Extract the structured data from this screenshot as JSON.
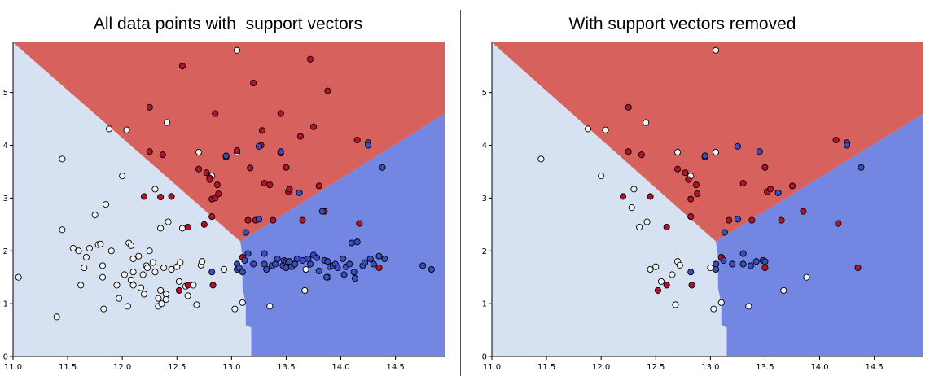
{
  "chart_data": [
    {
      "type": "scatter",
      "title": "All data points with  support vectors",
      "xlabel": "",
      "ylabel": "",
      "xlim": [
        11.0,
        14.95
      ],
      "ylim": [
        0,
        5.95
      ],
      "xticks": [
        "11.0",
        "11.5",
        "12.0",
        "12.5",
        "13.0",
        "13.5",
        "14.0",
        "14.5"
      ],
      "yticks": [
        "0",
        "1",
        "2",
        "3",
        "4",
        "5"
      ],
      "grid": false,
      "legend": "none",
      "regions": [
        {
          "name": "light",
          "color": "#d6e1f1"
        },
        {
          "name": "red",
          "color": "#d7625d"
        },
        {
          "name": "blue",
          "color": "#7387e2"
        }
      ],
      "boundary_vertex": [
        13.08,
        2.18
      ],
      "colors": {
        "white": "#f2f2f2",
        "red": "#b2132b",
        "blue": "#3b4cc0"
      },
      "points": {
        "white": [
          [
            11.05,
            1.5
          ],
          [
            11.4,
            0.75
          ],
          [
            11.45,
            3.74
          ],
          [
            11.45,
            2.4
          ],
          [
            11.55,
            2.05
          ],
          [
            11.6,
            2.0
          ],
          [
            11.62,
            1.35
          ],
          [
            11.65,
            1.68
          ],
          [
            11.67,
            1.88
          ],
          [
            11.7,
            2.05
          ],
          [
            11.75,
            2.68
          ],
          [
            11.78,
            2.12
          ],
          [
            11.8,
            2.13
          ],
          [
            11.82,
            1.72
          ],
          [
            11.82,
            1.5
          ],
          [
            11.83,
            0.9
          ],
          [
            11.85,
            2.88
          ],
          [
            11.88,
            4.31
          ],
          [
            11.9,
            2.0
          ],
          [
            11.95,
            1.35
          ],
          [
            11.97,
            1.1
          ],
          [
            12.0,
            3.42
          ],
          [
            12.02,
            1.55
          ],
          [
            12.04,
            4.29
          ],
          [
            12.05,
            0.95
          ],
          [
            12.06,
            2.15
          ],
          [
            12.08,
            1.45
          ],
          [
            12.08,
            2.1
          ],
          [
            12.1,
            1.85
          ],
          [
            12.1,
            1.35
          ],
          [
            12.1,
            1.6
          ],
          [
            12.15,
            1.9
          ],
          [
            12.17,
            1.3
          ],
          [
            12.19,
            1.55
          ],
          [
            12.2,
            1.18
          ],
          [
            12.22,
            1.72
          ],
          [
            12.23,
            1.68
          ],
          [
            12.25,
            2.0
          ],
          [
            12.28,
            1.78
          ],
          [
            12.3,
            3.17
          ],
          [
            12.3,
            1.6
          ],
          [
            12.33,
            1.1
          ],
          [
            12.33,
            0.95
          ],
          [
            12.35,
            1.25
          ],
          [
            12.35,
            2.43
          ],
          [
            12.36,
            1.0
          ],
          [
            12.38,
            1.68
          ],
          [
            12.4,
            1.18
          ],
          [
            12.4,
            1.08
          ],
          [
            12.41,
            4.43
          ],
          [
            12.42,
            2.55
          ],
          [
            12.45,
            1.65
          ],
          [
            12.5,
            1.7
          ],
          [
            12.52,
            1.42
          ],
          [
            12.53,
            1.78
          ],
          [
            12.55,
            2.43
          ],
          [
            12.58,
            1.33
          ],
          [
            12.6,
            1.15
          ],
          [
            12.65,
            1.35
          ],
          [
            12.68,
            0.98
          ],
          [
            12.7,
            3.87
          ],
          [
            12.72,
            1.73
          ],
          [
            12.73,
            1.8
          ],
          [
            12.82,
            3.42
          ],
          [
            12.93,
            1.65
          ],
          [
            13.03,
            0.9
          ],
          [
            13.05,
            5.8
          ],
          [
            13.05,
            3.87
          ],
          [
            13.1,
            1.02
          ],
          [
            13.35,
            0.95
          ],
          [
            13.67,
            1.25
          ],
          [
            13.68,
            1.65
          ],
          [
            13.88,
            1.5
          ]
        ],
        "red": [
          [
            12.2,
            3.03
          ],
          [
            12.25,
            4.72
          ],
          [
            12.25,
            3.88
          ],
          [
            12.35,
            3.02
          ],
          [
            12.37,
            3.82
          ],
          [
            12.45,
            3.03
          ],
          [
            12.52,
            1.25
          ],
          [
            12.55,
            5.5
          ],
          [
            12.6,
            1.35
          ],
          [
            12.6,
            2.45
          ],
          [
            12.7,
            3.55
          ],
          [
            12.75,
            2.5
          ],
          [
            12.77,
            3.48
          ],
          [
            12.8,
            3.38
          ],
          [
            12.8,
            3.35
          ],
          [
            12.82,
            2.98
          ],
          [
            12.82,
            2.65
          ],
          [
            12.83,
            1.35
          ],
          [
            12.85,
            4.6
          ],
          [
            12.85,
            3.0
          ],
          [
            12.87,
            3.25
          ],
          [
            12.88,
            3.08
          ],
          [
            12.95,
            3.78
          ],
          [
            13.05,
            3.9
          ],
          [
            13.1,
            1.88
          ],
          [
            13.15,
            2.58
          ],
          [
            13.17,
            3.57
          ],
          [
            13.2,
            5.18
          ],
          [
            13.22,
            2.58
          ],
          [
            13.27,
            4.0
          ],
          [
            13.28,
            4.28
          ],
          [
            13.3,
            3.28
          ],
          [
            13.35,
            3.25
          ],
          [
            13.38,
            2.58
          ],
          [
            13.45,
            4.6
          ],
          [
            13.45,
            3.85
          ],
          [
            13.5,
            3.58
          ],
          [
            13.5,
            1.68
          ],
          [
            13.52,
            3.12
          ],
          [
            13.53,
            3.17
          ],
          [
            13.57,
            1.75
          ],
          [
            13.63,
            4.17
          ],
          [
            13.65,
            2.58
          ],
          [
            13.72,
            5.63
          ],
          [
            13.75,
            4.35
          ],
          [
            13.8,
            3.23
          ],
          [
            13.85,
            2.75
          ],
          [
            13.88,
            5.03
          ],
          [
            14.15,
            4.1
          ],
          [
            14.17,
            2.52
          ],
          [
            14.35,
            1.68
          ]
        ],
        "blue": [
          [
            12.82,
            1.6
          ],
          [
            12.95,
            3.8
          ],
          [
            13.05,
            1.75
          ],
          [
            13.05,
            1.65
          ],
          [
            13.07,
            1.68
          ],
          [
            13.1,
            1.6
          ],
          [
            13.12,
            1.82
          ],
          [
            13.13,
            2.35
          ],
          [
            13.15,
            1.95
          ],
          [
            13.2,
            1.75
          ],
          [
            13.25,
            3.98
          ],
          [
            13.25,
            2.6
          ],
          [
            13.3,
            1.95
          ],
          [
            13.3,
            1.75
          ],
          [
            13.32,
            1.65
          ],
          [
            13.37,
            1.72
          ],
          [
            13.4,
            1.75
          ],
          [
            13.42,
            1.85
          ],
          [
            13.45,
            3.88
          ],
          [
            13.47,
            1.72
          ],
          [
            13.48,
            1.82
          ],
          [
            13.5,
            1.8
          ],
          [
            13.5,
            1.68
          ],
          [
            13.52,
            1.78
          ],
          [
            13.53,
            1.8
          ],
          [
            13.55,
            1.7
          ],
          [
            13.58,
            1.75
          ],
          [
            13.6,
            1.85
          ],
          [
            13.62,
            3.1
          ],
          [
            13.65,
            1.82
          ],
          [
            13.7,
            1.85
          ],
          [
            13.72,
            1.75
          ],
          [
            13.75,
            1.92
          ],
          [
            13.78,
            1.87
          ],
          [
            13.8,
            1.62
          ],
          [
            13.83,
            2.75
          ],
          [
            13.85,
            1.82
          ],
          [
            13.87,
            1.5
          ],
          [
            13.88,
            1.8
          ],
          [
            13.9,
            1.7
          ],
          [
            13.93,
            1.72
          ],
          [
            13.95,
            1.75
          ],
          [
            13.97,
            1.68
          ],
          [
            14.02,
            1.85
          ],
          [
            14.03,
            1.55
          ],
          [
            14.05,
            1.7
          ],
          [
            14.08,
            1.75
          ],
          [
            14.1,
            2.15
          ],
          [
            14.12,
            1.6
          ],
          [
            14.13,
            1.48
          ],
          [
            14.15,
            2.17
          ],
          [
            14.2,
            1.72
          ],
          [
            14.22,
            1.78
          ],
          [
            14.25,
            4.05
          ],
          [
            14.25,
            4.0
          ],
          [
            14.27,
            1.85
          ],
          [
            14.3,
            1.75
          ],
          [
            14.35,
            1.9
          ],
          [
            14.38,
            3.58
          ],
          [
            14.4,
            1.85
          ],
          [
            14.75,
            1.72
          ],
          [
            14.83,
            1.65
          ]
        ]
      }
    },
    {
      "type": "scatter",
      "title": "With support vectors removed",
      "xlabel": "",
      "ylabel": "",
      "xlim": [
        11.0,
        14.95
      ],
      "ylim": [
        0,
        5.95
      ],
      "xticks": [
        "11.0",
        "11.5",
        "12.0",
        "12.5",
        "13.0",
        "13.5",
        "14.0",
        "14.5"
      ],
      "yticks": [
        "0",
        "1",
        "2",
        "3",
        "4",
        "5"
      ],
      "grid": false,
      "legend": "none",
      "regions": [
        {
          "name": "light",
          "color": "#d6e1f1"
        },
        {
          "name": "red",
          "color": "#d7625d"
        },
        {
          "name": "blue",
          "color": "#7387e2"
        }
      ],
      "boundary_vertex": [
        13.05,
        2.18
      ],
      "colors": {
        "white": "#f2f2f2",
        "red": "#b2132b",
        "blue": "#3b4cc0"
      },
      "points": {
        "white": [
          [
            11.45,
            3.74
          ],
          [
            11.88,
            4.31
          ],
          [
            12.0,
            3.42
          ],
          [
            12.04,
            4.29
          ],
          [
            12.3,
            3.17
          ],
          [
            12.28,
            2.82
          ],
          [
            12.35,
            2.45
          ],
          [
            12.41,
            4.43
          ],
          [
            12.42,
            2.55
          ],
          [
            12.45,
            1.65
          ],
          [
            12.5,
            1.7
          ],
          [
            12.55,
            1.42
          ],
          [
            12.65,
            1.55
          ],
          [
            12.68,
            0.98
          ],
          [
            12.7,
            1.8
          ],
          [
            12.7,
            3.87
          ],
          [
            12.72,
            1.73
          ],
          [
            12.82,
            3.42
          ],
          [
            13.0,
            1.68
          ],
          [
            13.03,
            0.9
          ],
          [
            13.05,
            5.8
          ],
          [
            13.05,
            3.87
          ],
          [
            13.1,
            1.02
          ],
          [
            13.35,
            0.95
          ],
          [
            13.67,
            1.25
          ],
          [
            13.88,
            1.5
          ]
        ],
        "red": [
          [
            12.2,
            3.03
          ],
          [
            12.25,
            4.72
          ],
          [
            12.25,
            3.88
          ],
          [
            12.37,
            3.82
          ],
          [
            12.45,
            3.03
          ],
          [
            12.52,
            1.25
          ],
          [
            12.6,
            1.35
          ],
          [
            12.6,
            2.45
          ],
          [
            12.7,
            3.55
          ],
          [
            12.77,
            3.48
          ],
          [
            12.82,
            2.98
          ],
          [
            12.82,
            2.65
          ],
          [
            12.83,
            1.35
          ],
          [
            12.8,
            3.35
          ],
          [
            12.87,
            3.25
          ],
          [
            12.88,
            3.08
          ],
          [
            12.95,
            3.78
          ],
          [
            13.1,
            1.88
          ],
          [
            13.17,
            2.58
          ],
          [
            13.3,
            3.28
          ],
          [
            13.38,
            2.58
          ],
          [
            13.5,
            3.58
          ],
          [
            13.5,
            1.68
          ],
          [
            13.52,
            3.12
          ],
          [
            13.55,
            3.17
          ],
          [
            13.65,
            2.58
          ],
          [
            13.75,
            3.23
          ],
          [
            13.85,
            2.75
          ],
          [
            14.15,
            4.1
          ],
          [
            14.17,
            2.52
          ],
          [
            14.35,
            1.68
          ]
        ],
        "blue": [
          [
            12.82,
            1.6
          ],
          [
            12.95,
            3.8
          ],
          [
            13.05,
            1.75
          ],
          [
            13.05,
            1.65
          ],
          [
            13.12,
            1.82
          ],
          [
            13.13,
            2.35
          ],
          [
            13.2,
            1.75
          ],
          [
            13.25,
            3.98
          ],
          [
            13.25,
            2.6
          ],
          [
            13.3,
            1.95
          ],
          [
            13.3,
            1.75
          ],
          [
            13.37,
            1.72
          ],
          [
            13.42,
            1.8
          ],
          [
            13.45,
            3.88
          ],
          [
            13.48,
            1.82
          ],
          [
            13.5,
            1.8
          ],
          [
            13.62,
            3.1
          ],
          [
            14.25,
            4.05
          ],
          [
            14.25,
            4.0
          ],
          [
            14.38,
            3.58
          ]
        ]
      }
    }
  ]
}
